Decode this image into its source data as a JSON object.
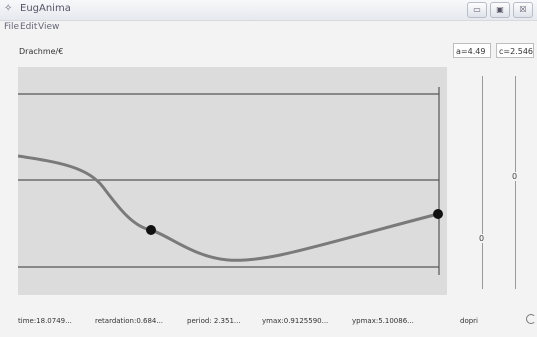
{
  "window": {
    "title": "EugAnima",
    "min_glyph": "▭",
    "max_glyph": "▣",
    "close_glyph": "☒"
  },
  "menu": {
    "file": "File",
    "edit": "Edit",
    "view": "View"
  },
  "toolbar": {
    "currency_label": "Drachme/€",
    "param_a": "a=4.49",
    "param_c": "c=2.546"
  },
  "sliders": {
    "a_value": "0",
    "c_value": "0"
  },
  "status": {
    "time": "time:18.0749...",
    "retardation": "retardation:0.684...",
    "period": "period: 2.351...",
    "ymax": "ymax:0.9125590...",
    "ypmax": "ypmax:5.10086...",
    "solver": "dopri"
  },
  "colors": {
    "plot_bg": "#dcdcdc",
    "curve": "#7a7a7a",
    "lines": "#555555",
    "point": "#111111"
  }
}
